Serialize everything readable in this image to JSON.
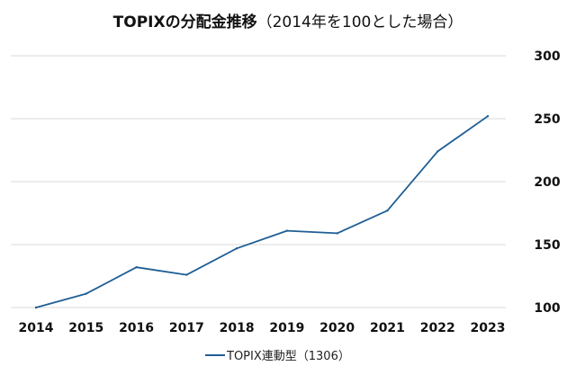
{
  "chart_data": {
    "type": "line",
    "title": "TOPIXの分配金推移",
    "subtitle": "（2014年を100とした場合）",
    "x": [
      "2014",
      "2015",
      "2016",
      "2017",
      "2018",
      "2019",
      "2020",
      "2021",
      "2022",
      "2023"
    ],
    "series": [
      {
        "name": "TOPIX連動型（1306）",
        "values": [
          100,
          111,
          132,
          126,
          147,
          161,
          159,
          177,
          224,
          252
        ]
      }
    ],
    "ylim": [
      100,
      300
    ],
    "yticks": [
      100,
      150,
      200,
      250,
      300
    ],
    "grid": true,
    "y_axis_side": "right",
    "legend_position": "bottom-center",
    "colors": {
      "series": "#1f5e96",
      "grid": "#d9d9d9",
      "text": "#111111"
    }
  }
}
